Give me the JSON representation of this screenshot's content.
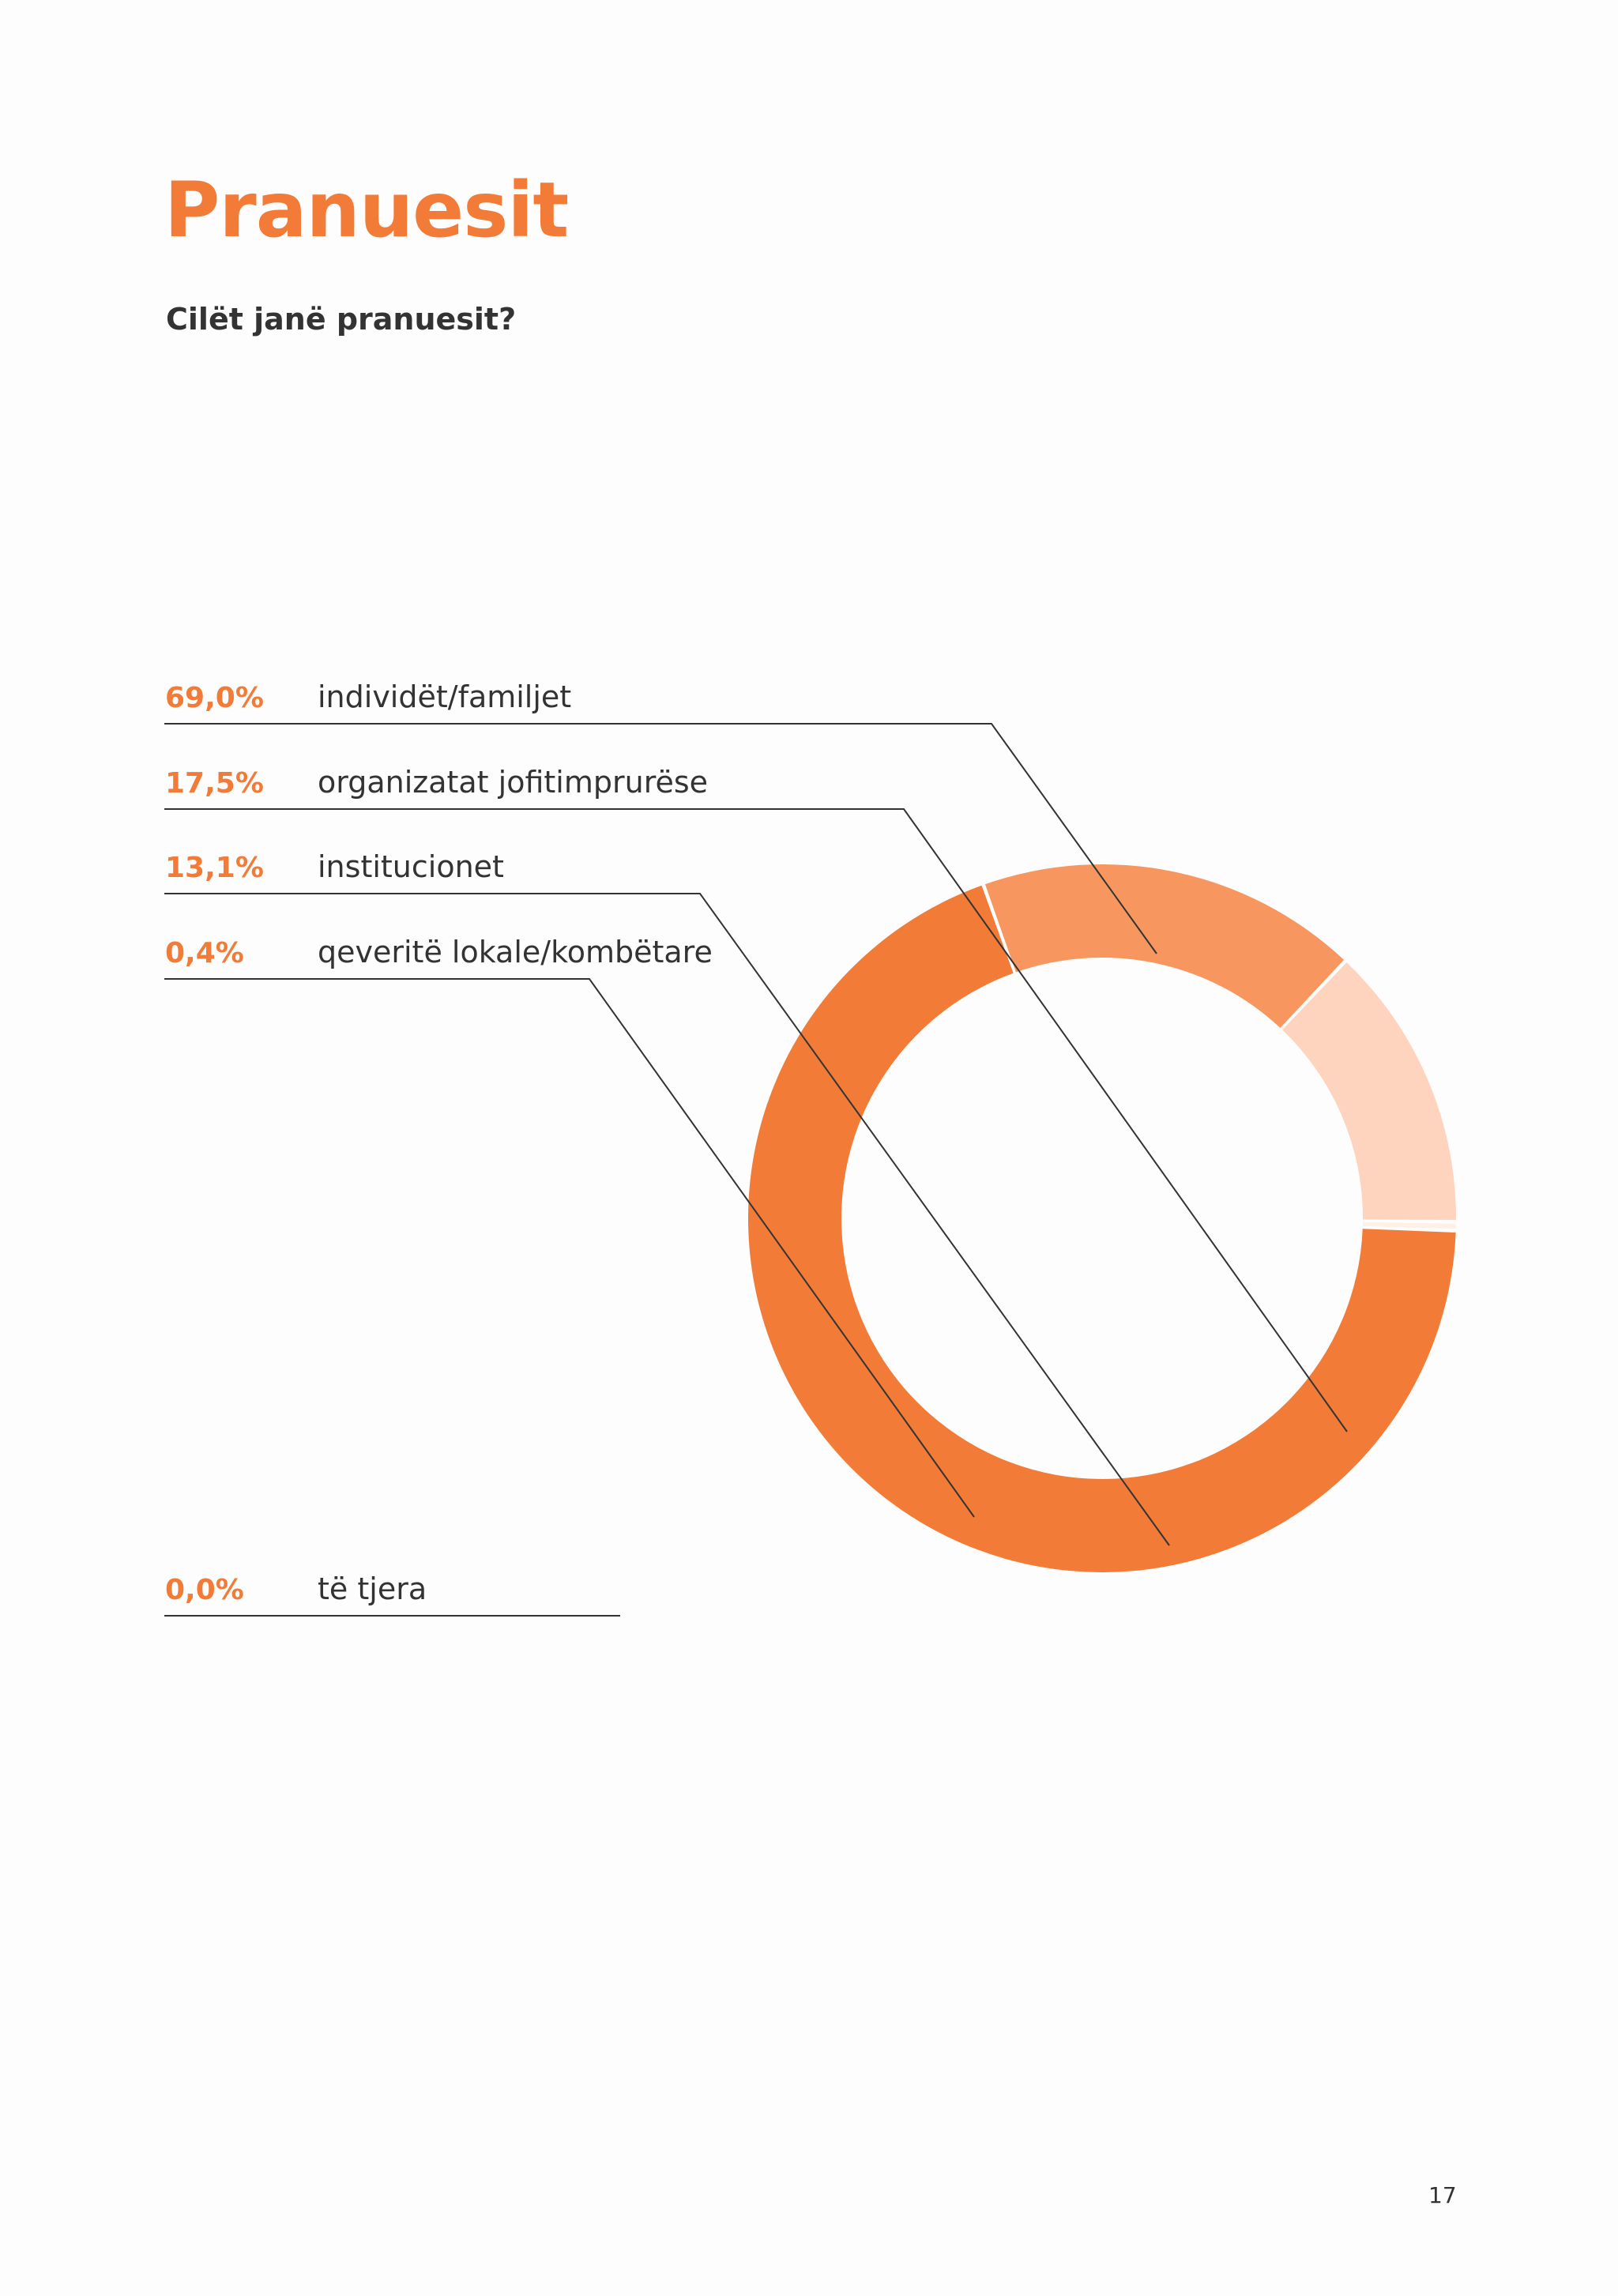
{
  "page": {
    "title": "Pranuesit",
    "subtitle": "Cilët janë pranuesit?",
    "page_number": "17"
  },
  "colors": {
    "accent": "#f27b38",
    "text": "#333333",
    "leader": "#333333"
  },
  "chart_data": {
    "type": "pie",
    "variant": "donut",
    "title": "",
    "legend": "left",
    "slices": [
      {
        "label": "individët/familjet",
        "value": 69.0,
        "value_label": "69,0%",
        "color": "#f27b38"
      },
      {
        "label": "organizatat jofitimprurëse",
        "value": 17.5,
        "value_label": "17,5%",
        "color": "#f7975f"
      },
      {
        "label": "institucionet",
        "value": 13.1,
        "value_label": "13,1%",
        "color": "#fed4bf"
      },
      {
        "label": "qeveritë lokale/kombëtare",
        "value": 0.4,
        "value_label": "0,4%",
        "color": "#fff0e6"
      },
      {
        "label": "të tjera",
        "value": 0.0,
        "value_label": "0,0%",
        "color": "#ffffff"
      }
    ]
  }
}
